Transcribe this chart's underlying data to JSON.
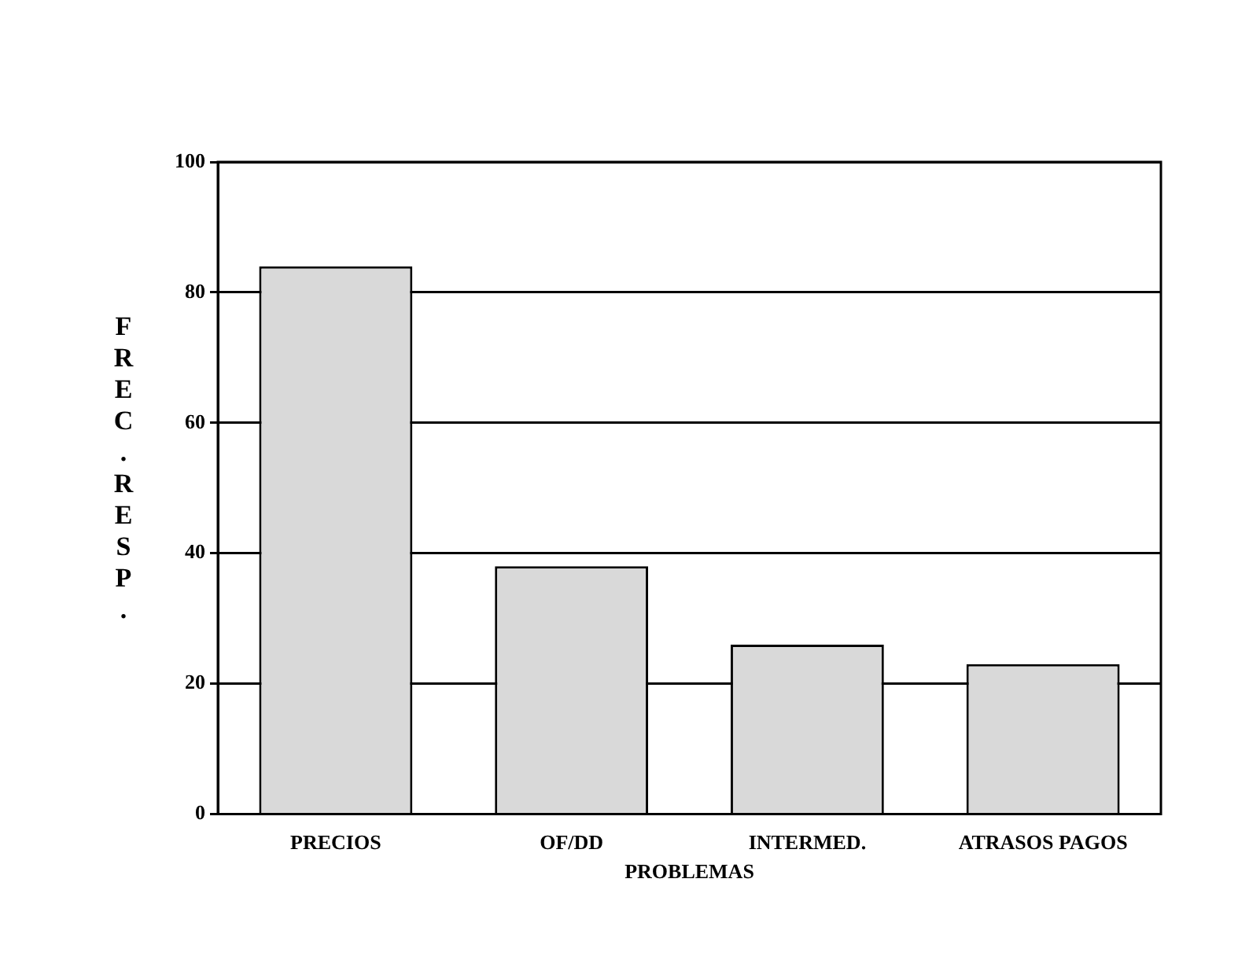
{
  "chart_data": {
    "type": "bar",
    "xlabel": "PROBLEMAS",
    "ylabel": "FREC.RESP.",
    "categories": [
      "PRECIOS",
      "OF/DD",
      "INTERMED.",
      "ATRASOS PAGOS"
    ],
    "values": [
      84,
      38,
      26,
      23
    ],
    "color": "#d9d9d9",
    "ylim": [
      0,
      100
    ],
    "yticks": [
      0,
      20,
      40,
      60,
      80,
      100
    ],
    "grid": "y",
    "legend": false
  }
}
